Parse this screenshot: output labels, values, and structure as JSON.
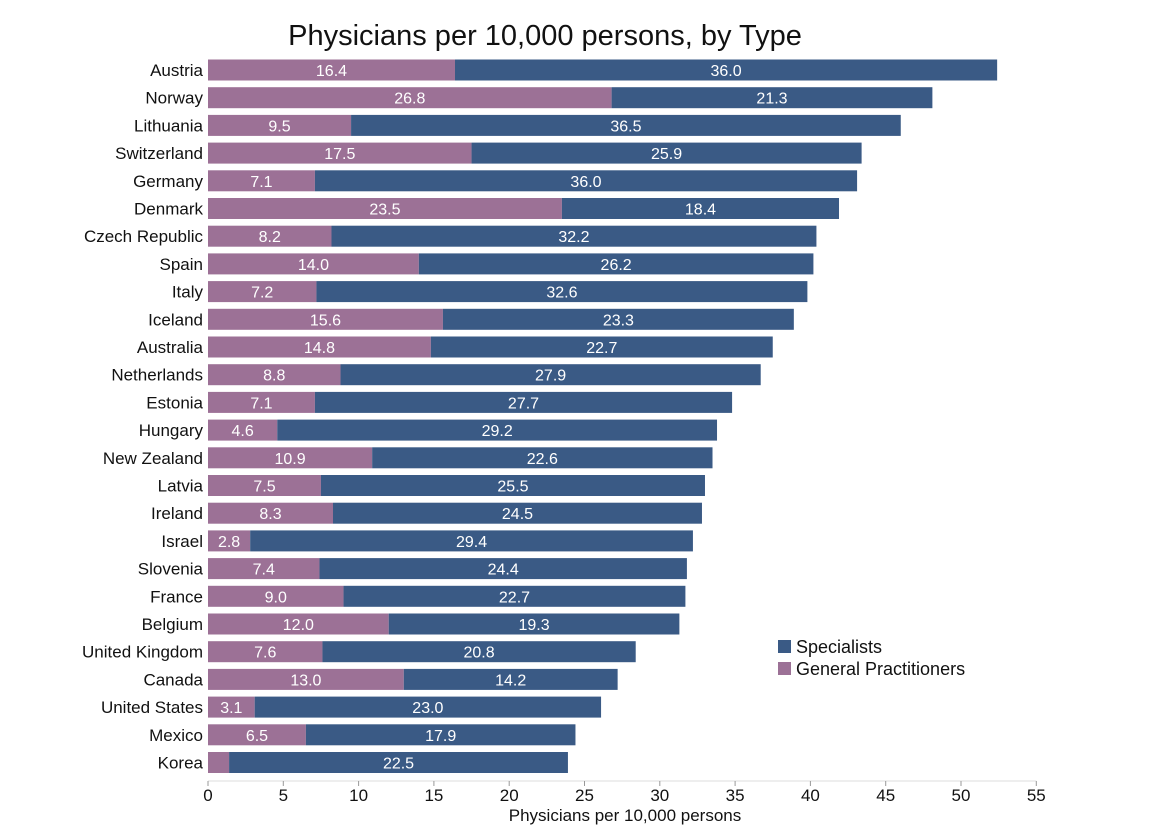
{
  "chart_data": {
    "type": "bar",
    "orientation": "horizontal",
    "stacked": true,
    "title": "Physicians per 10,000 persons, by Type",
    "xlabel": "Physicians per 10,000 persons",
    "ylabel": "",
    "xlim": [
      0,
      55
    ],
    "xticks": [
      0,
      5,
      10,
      15,
      20,
      25,
      30,
      35,
      40,
      45,
      50,
      55
    ],
    "grid": false,
    "legend_position": "right",
    "categories": [
      "Austria",
      "Norway",
      "Lithuania",
      "Switzerland",
      "Germany",
      "Denmark",
      "Czech Republic",
      "Spain",
      "Italy",
      "Iceland",
      "Australia",
      "Netherlands",
      "Estonia",
      "Hungary",
      "New Zealand",
      "Latvia",
      "Ireland",
      "Israel",
      "Slovenia",
      "France",
      "Belgium",
      "United Kingdom",
      "Canada",
      "United States",
      "Mexico",
      "Korea"
    ],
    "series": [
      {
        "name": "General Practitioners",
        "color": "#9c7196",
        "values": [
          16.4,
          26.8,
          9.5,
          17.5,
          7.1,
          23.5,
          8.2,
          14.0,
          7.2,
          15.6,
          14.8,
          8.8,
          7.1,
          4.6,
          10.9,
          7.5,
          8.3,
          2.8,
          7.4,
          9.0,
          12.0,
          7.6,
          13.0,
          3.1,
          6.5,
          1.4
        ],
        "labels": [
          "16.4",
          "26.8",
          "9.5",
          "17.5",
          "7.1",
          "23.5",
          "8.2",
          "14.0",
          "7.2",
          "15.6",
          "14.8",
          "8.8",
          "7.1",
          "4.6",
          "10.9",
          "7.5",
          "8.3",
          "2.8",
          "7.4",
          "9.0",
          "12.0",
          "7.6",
          "13.0",
          "3.1",
          "6.5",
          ""
        ]
      },
      {
        "name": "Specialists",
        "color": "#3a5a85",
        "values": [
          36.0,
          21.3,
          36.5,
          25.9,
          36.0,
          18.4,
          32.2,
          26.2,
          32.6,
          23.3,
          22.7,
          27.9,
          27.7,
          29.2,
          22.6,
          25.5,
          24.5,
          29.4,
          24.4,
          22.7,
          19.3,
          20.8,
          14.2,
          23.0,
          17.9,
          22.5
        ],
        "labels": [
          "36.0",
          "21.3",
          "36.5",
          "25.9",
          "36.0",
          "18.4",
          "32.2",
          "26.2",
          "32.6",
          "23.3",
          "22.7",
          "27.9",
          "27.7",
          "29.2",
          "22.6",
          "25.5",
          "24.5",
          "29.4",
          "24.4",
          "22.7",
          "19.3",
          "20.8",
          "14.2",
          "23.0",
          "17.9",
          "22.5"
        ]
      }
    ],
    "legend": [
      {
        "name": "Specialists",
        "color": "#3a5a85"
      },
      {
        "name": "General Practitioners",
        "color": "#9c7196"
      }
    ]
  }
}
